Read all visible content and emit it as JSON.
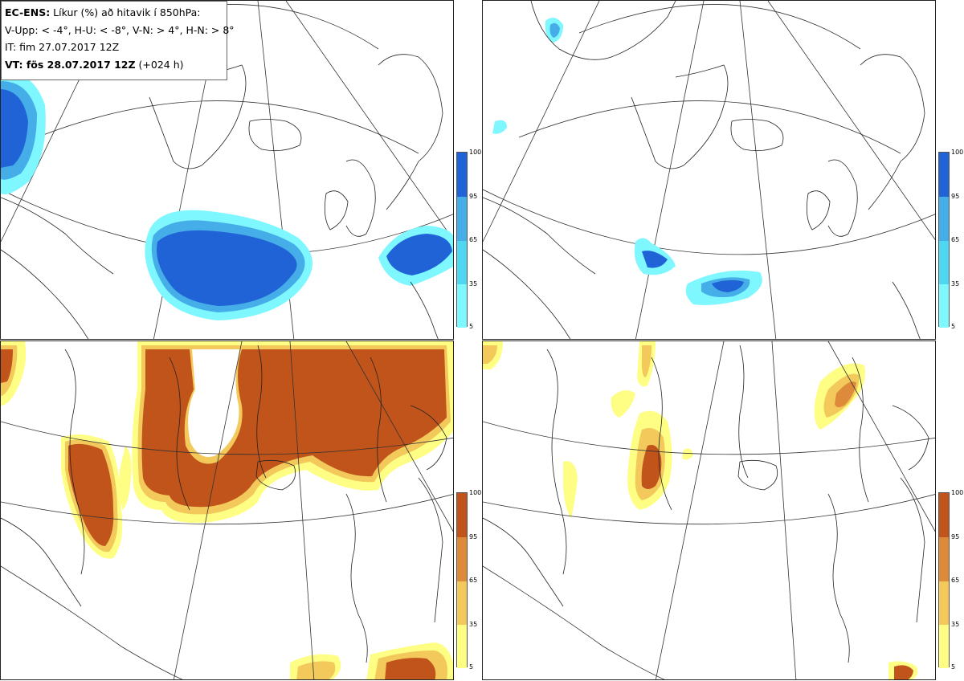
{
  "info": {
    "model": "EC-ENS:",
    "title_rest": " Líkur (%) að hitavik í 850hPa:",
    "thresholds": "V-Upp: < -4°, H-U: < -8°, V-N: > 4°, H-N: > 8°",
    "issue_time": "IT: fim 27.07.2017 12Z",
    "valid_label": "VT: fös 28.07.2017 12Z",
    "lead": " (+024 h)"
  },
  "colorbars": {
    "cold": {
      "colors": [
        "#7ff7ff",
        "#4fd6f0",
        "#45aee8",
        "#1f63d6"
      ],
      "ticks": [
        "100",
        "95",
        "65",
        "35",
        "5"
      ]
    },
    "warm": {
      "colors": [
        "#fefe85",
        "#f2c95a",
        "#dd8a3a",
        "#c0541a"
      ],
      "ticks": [
        "100",
        "95",
        "65",
        "35",
        "5"
      ]
    }
  },
  "panels": [
    {
      "id": "V-Upp",
      "scheme": "cold"
    },
    {
      "id": "H-U",
      "scheme": "cold"
    },
    {
      "id": "V-N",
      "scheme": "warm"
    },
    {
      "id": "H-N",
      "scheme": "warm"
    }
  ]
}
